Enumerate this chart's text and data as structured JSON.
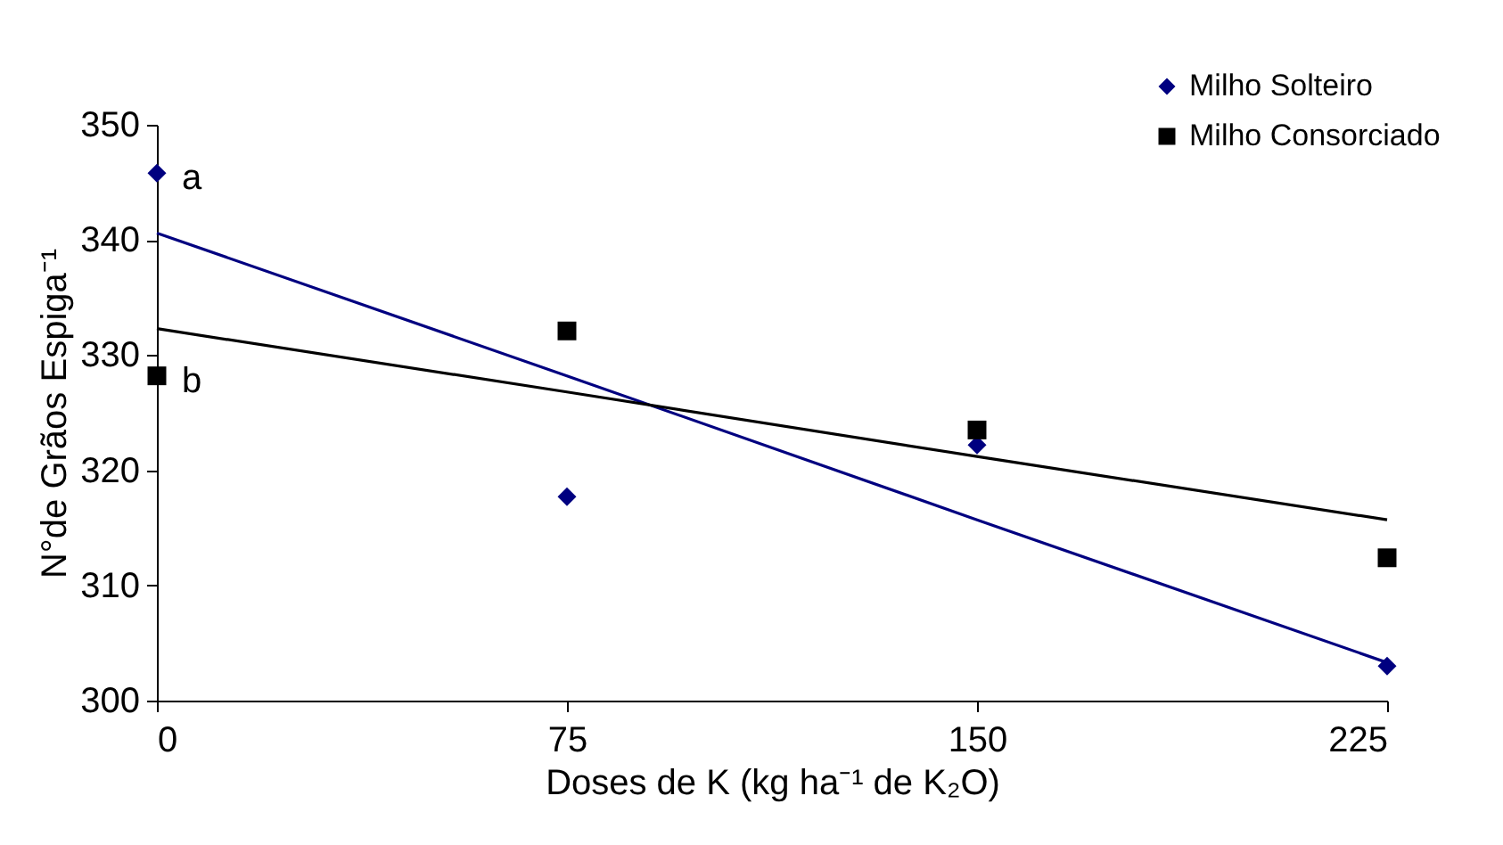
{
  "chart_data": {
    "type": "scatter",
    "xlabel": "Doses de K (kg ha⁻¹ de K₂O)",
    "ylabel": "N°de Grãos Espiga⁻¹",
    "x": [
      0,
      75,
      150,
      225
    ],
    "xlim": [
      0,
      225
    ],
    "xticks": [
      0,
      75,
      150,
      225
    ],
    "ylim": [
      300,
      350
    ],
    "yticks": [
      300,
      310,
      320,
      330,
      340,
      350
    ],
    "grid": false,
    "legend": "top right",
    "series": [
      {
        "name": "Milho Solteiro",
        "type": "scatter",
        "marker": "diamond",
        "color": "#000080",
        "values": [
          345.8,
          317.7,
          322.2,
          303.0
        ]
      },
      {
        "name": "Milho Consorciado",
        "type": "scatter",
        "marker": "square",
        "color": "#000000",
        "values": [
          328.2,
          332.1,
          323.5,
          312.4
        ]
      },
      {
        "type": "line",
        "color": "#000080",
        "values": [
          340.6,
          328.2,
          315.7,
          303.3
        ]
      },
      {
        "type": "line",
        "color": "#000000",
        "values": [
          332.3,
          326.8,
          321.2,
          315.7
        ]
      }
    ],
    "annotations": [
      {
        "text": "a",
        "x": 0,
        "y": 345.8
      },
      {
        "text": "b",
        "x": 0,
        "y": 328.2
      }
    ]
  }
}
